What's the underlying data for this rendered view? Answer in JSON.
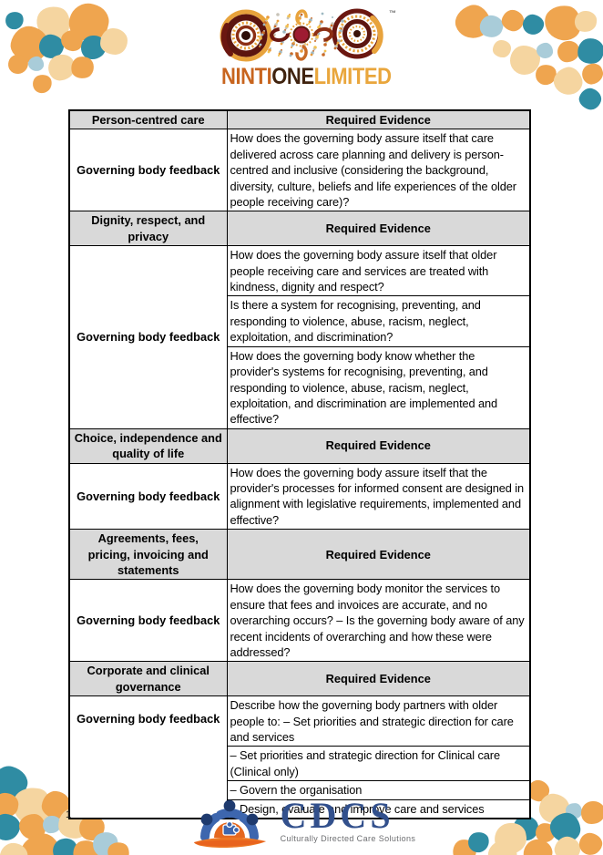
{
  "brand": {
    "name_part1": "NINTI",
    "name_part2": "ONE",
    "name_part3": "LIMITED",
    "trademark": "™"
  },
  "table": {
    "sections": [
      {
        "category": "Person-centred care",
        "evidence_header": "Required Evidence",
        "row_label": "Governing body feedback",
        "evidence": [
          "How does the governing body assure itself that care delivered across care planning and delivery is person-centred and inclusive (considering the background, diversity, culture, beliefs and life experiences of the older people receiving care)?"
        ]
      },
      {
        "category": "Dignity, respect, and privacy",
        "evidence_header": "Required Evidence",
        "row_label": "Governing body feedback",
        "evidence": [
          "How does the governing body assure itself that older people receiving care and services are treated with kindness, dignity and respect?",
          "Is there a system for recognising, preventing, and responding to violence, abuse, racism, neglect, exploitation, and discrimination?",
          "How does the governing body know whether the provider's systems for recognising, preventing, and responding to violence, abuse, racism, neglect, exploitation, and discrimination are implemented and effective?"
        ]
      },
      {
        "category": "Choice, independence and\nquality of life",
        "evidence_header": "Required Evidence",
        "row_label": "Governing body feedback",
        "evidence": [
          "How does the governing body assure itself that the provider's processes for informed consent are designed in alignment with legislative requirements, implemented and effective?"
        ]
      },
      {
        "category": "Agreements, fees,\npricing, invoicing and\nstatements",
        "evidence_header": "Required Evidence",
        "row_label": "Governing body feedback",
        "evidence": [
          "How does the governing body monitor the services to ensure that fees and invoices are accurate, and no overarching occurs? – Is the governing body aware of any recent incidents of overarching and how these were addressed?"
        ]
      },
      {
        "category": "Corporate and clinical\ngovernance",
        "evidence_header": "Required Evidence",
        "row_label": "Governing body feedback",
        "evidence": [
          "Describe how the governing body partners with older people to: – Set priorities and strategic direction for care and services",
          "– Set priorities and strategic direction for Clinical care (Clinical only)",
          "– Govern the organisation",
          "– Design, evaluate and improve care and services"
        ]
      }
    ]
  },
  "footer": {
    "page_number": "1",
    "cdcs_name": "CDCS",
    "cdcs_tagline": "Culturally Directed Care Solutions"
  },
  "colors": {
    "header_cell_bg": "#D9D9D9",
    "blob_orange": "#EFA54F",
    "blob_cream": "#F5D5A0",
    "blob_teal": "#2F8CA3",
    "blob_lightblue": "#A9CCD9",
    "ninti_orange": "#C8651F",
    "ninti_brown": "#40230F",
    "ninti_gold": "#E9A63C",
    "cdcs_blue": "#32508C",
    "cdcs_gray": "#6D6E71"
  }
}
